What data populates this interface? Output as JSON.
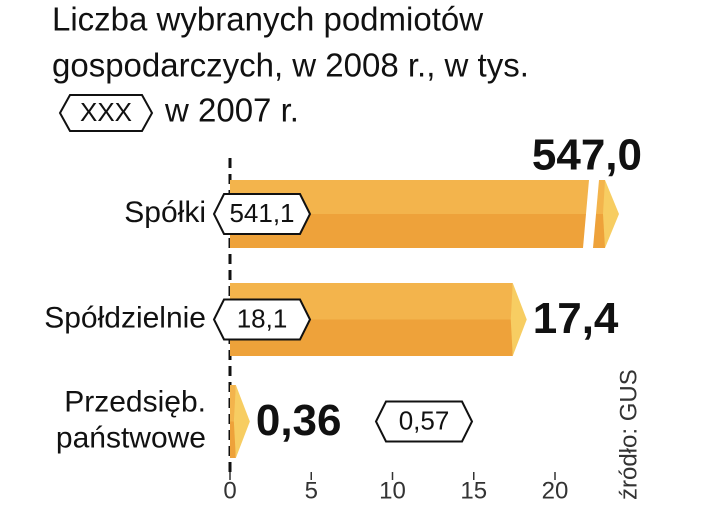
{
  "chart_data": {
    "type": "bar",
    "orientation": "horizontal",
    "title": [
      "Liczba wybranych podmiotów",
      "gospodarczych, w 2008 r., w tys."
    ],
    "legend": {
      "symbol_label": "XXX",
      "text": "w 2007 r."
    },
    "categories": [
      "Spółki",
      "Spółdzielnie",
      "Przedsięb. państwowe"
    ],
    "values": [
      547.0,
      17.4,
      0.36
    ],
    "value_labels": [
      "547,0",
      "17,4",
      "0,36"
    ],
    "prev_values": [
      541.1,
      18.1,
      0.57
    ],
    "prev_value_labels": [
      "541,1",
      "18,1",
      "0,57"
    ],
    "color": "#eea23a",
    "xlim": [
      0,
      20
    ],
    "xticks": [
      0,
      5,
      10,
      15,
      20
    ],
    "source": "źródło: GUS"
  }
}
